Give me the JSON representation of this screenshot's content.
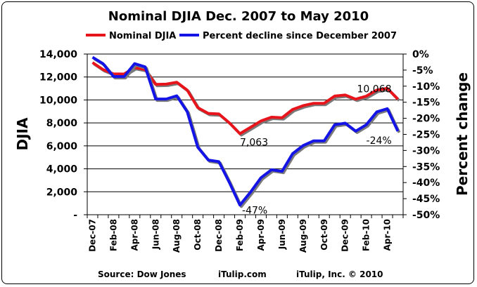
{
  "chart_data": {
    "type": "line",
    "title": "Nominal DJIA Dec. 2007 to May 2010",
    "ylabel": "DJIA",
    "y2label": "Percent change",
    "ylim": [
      0,
      14000
    ],
    "y2lim": [
      -50,
      0
    ],
    "grid": true,
    "legend_position": "top",
    "y_ticks": [
      "-",
      "2,000",
      "4,000",
      "6,000",
      "8,000",
      "10,000",
      "12,000",
      "14,000"
    ],
    "y2_ticks": [
      "0%",
      "-5%",
      "-10%",
      "-15%",
      "-20%",
      "-25%",
      "-30%",
      "-35%",
      "-40%",
      "-45%",
      "-50%"
    ],
    "x": [
      "Dec-07",
      "Jan-08",
      "Feb-08",
      "Mar-08",
      "Apr-08",
      "May-08",
      "Jun-08",
      "Jul-08",
      "Aug-08",
      "Sep-08",
      "Oct-08",
      "Nov-08",
      "Dec-08",
      "Jan-09",
      "Feb-09",
      "Mar-09",
      "Apr-09",
      "May-09",
      "Jun-09",
      "Jul-09",
      "Aug-09",
      "Sep-09",
      "Oct-09",
      "Nov-09",
      "Dec-09",
      "Jan-10",
      "Feb-10",
      "Mar-10",
      "Apr-10",
      "May-10"
    ],
    "x_tick_labels": [
      "Dec-07",
      "Feb-08",
      "Apr-08",
      "Jun-08",
      "Aug-08",
      "Oct-08",
      "Dec-08",
      "Feb-09",
      "Apr-09",
      "Jun-09",
      "Aug-09",
      "Oct-09",
      "Dec-09",
      "Feb-10",
      "Apr-10"
    ],
    "series": [
      {
        "name": "Nominal DJIA",
        "axis": "left",
        "color": "#e8141b",
        "values": [
          13260,
          12650,
          12270,
          12260,
          12820,
          12640,
          11350,
          11380,
          11540,
          10850,
          9330,
          8830,
          8780,
          8000,
          7063,
          7610,
          8170,
          8500,
          8450,
          9170,
          9500,
          9710,
          9710,
          10340,
          10430,
          10070,
          10330,
          10860,
          11010,
          10068
        ]
      },
      {
        "name": "Percent decline since December 2007",
        "axis": "right",
        "color": "#1414e6",
        "values": [
          -1,
          -3,
          -7,
          -7,
          -3,
          -4,
          -14,
          -14,
          -13,
          -18,
          -29,
          -33,
          -33.5,
          -40,
          -47,
          -43,
          -38.5,
          -36,
          -36.5,
          -31,
          -28.5,
          -27,
          -27,
          -22,
          -21.5,
          -24,
          -22,
          -18,
          -17,
          -24
        ]
      }
    ],
    "annotations": [
      {
        "text": "10,068",
        "series": 0,
        "index": 29
      },
      {
        "text": "7,063",
        "series": 0,
        "index": 14
      },
      {
        "text": "-47%",
        "series": 1,
        "index": 14
      },
      {
        "text": "-24%",
        "series": 1,
        "index": 29
      }
    ]
  },
  "footer": {
    "source": "Source: Dow Jones",
    "site": "iTulip.com",
    "copyright": "iTulip, Inc. © 2010"
  }
}
